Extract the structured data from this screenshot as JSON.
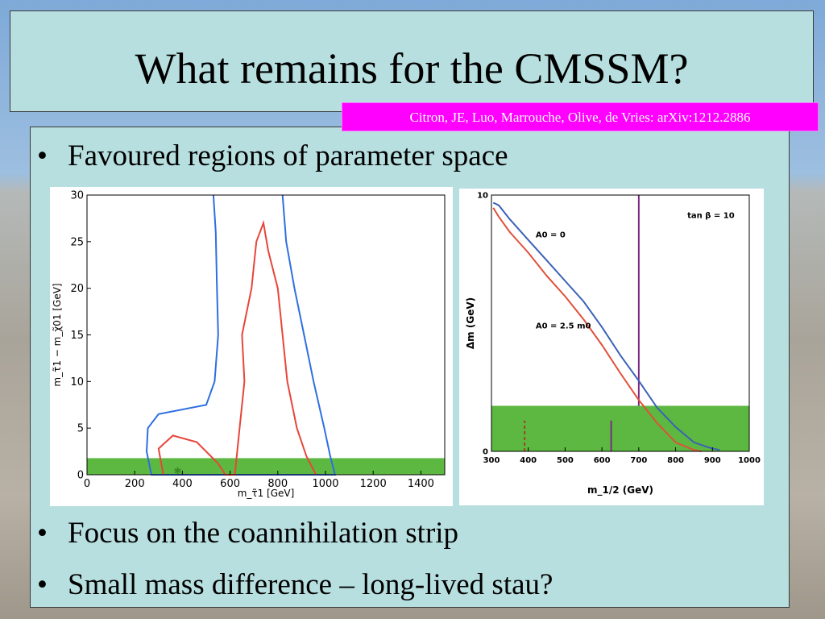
{
  "slide": {
    "title": "What remains for the CMSSM?",
    "citation": "Citron, JE, Luo, Marrouche, Olive, de Vries: arXiv:1212.2886",
    "bullets": [
      "Favoured regions of parameter space",
      "Focus on the coannihilation strip",
      "Small mass difference – long-lived stau?"
    ],
    "bullet_glyph": "•"
  },
  "colors": {
    "panel": "#b8dfe0",
    "citation_bg": "#ff00ff",
    "blue_contour": "#2e6fe0",
    "red_contour": "#e8453a",
    "green_band": "#5cb840",
    "purple_line": "#7a2c82"
  },
  "chart_data": [
    {
      "type": "line",
      "xlabel": "m_τ̃1 [GeV]",
      "ylabel": "m_τ̃1 − m_χ̃01 [GeV]",
      "xlim": [
        0,
        1500
      ],
      "ylim": [
        0,
        30
      ],
      "x_ticks": [
        "0",
        "200",
        "400",
        "600",
        "800",
        "1000",
        "1200",
        "1400"
      ],
      "y_ticks": [
        "0",
        "5",
        "10",
        "15",
        "20",
        "25",
        "30"
      ],
      "grid": false,
      "bands": [
        {
          "y": [
            0,
            1.777
          ],
          "color": "#5cb840"
        }
      ],
      "markers": [
        {
          "x": 380,
          "y": 0.4,
          "color": "#3a8a2a",
          "shape": "star"
        }
      ],
      "series": [
        {
          "color": "#2e6fe0",
          "points": [
            [
              530,
              30
            ],
            [
              540,
              26
            ],
            [
              545,
              20
            ],
            [
              550,
              15
            ],
            [
              535,
              10
            ],
            [
              500,
              7.5
            ],
            [
              300,
              6.5
            ],
            [
              255,
              5
            ],
            [
              250,
              2.5
            ],
            [
              270,
              0
            ],
            [
              1040,
              0
            ],
            [
              1020,
              2
            ],
            [
              995,
              5
            ],
            [
              950,
              10
            ],
            [
              910,
              15
            ],
            [
              870,
              20
            ],
            [
              835,
              25
            ],
            [
              820,
              30
            ]
          ]
        },
        {
          "color": "#e8453a",
          "points": [
            [
              320,
              0
            ],
            [
              300,
              2.8
            ],
            [
              360,
              4.2
            ],
            [
              460,
              3.5
            ],
            [
              550,
              1.2
            ],
            [
              580,
              0
            ],
            [
              620,
              0
            ],
            [
              640,
              5
            ],
            [
              660,
              10
            ],
            [
              650,
              15
            ],
            [
              690,
              20
            ],
            [
              710,
              25
            ],
            [
              740,
              27
            ],
            [
              760,
              24
            ],
            [
              800,
              20
            ],
            [
              820,
              15
            ],
            [
              840,
              10
            ],
            [
              880,
              5
            ],
            [
              920,
              2
            ],
            [
              960,
              0
            ]
          ]
        }
      ]
    },
    {
      "type": "line",
      "xlabel": "m_1/2 (GeV)",
      "ylabel": "Δm (GeV)",
      "xlim": [
        300,
        1000
      ],
      "ylim": [
        0,
        10
      ],
      "x_ticks": [
        "300",
        "400",
        "500",
        "600",
        "700",
        "800",
        "900",
        "1000"
      ],
      "y_ticks": [
        "0",
        "10"
      ],
      "grid": false,
      "annotations": [
        "tan β = 10",
        "A0 = 0",
        "A0 = 2.5 m0"
      ],
      "bands": [
        {
          "y": [
            0,
            1.777
          ],
          "color": "#5cb840"
        }
      ],
      "vlines": [
        {
          "x": 700,
          "y": [
            1.777,
            10
          ],
          "color": "#7a2c82",
          "style": "solid"
        },
        {
          "x": 625,
          "y": [
            0,
            1.2
          ],
          "color": "#7a2c82",
          "style": "solid"
        },
        {
          "x": 390,
          "y": [
            0,
            1.2
          ],
          "color": "#a0402a",
          "style": "dashed"
        }
      ],
      "series": [
        {
          "name": "A0 = 0",
          "color": "#3a62b5",
          "points": [
            [
              305,
              9.7
            ],
            [
              320,
              9.6
            ],
            [
              350,
              9.05
            ],
            [
              400,
              8.25
            ],
            [
              450,
              7.45
            ],
            [
              500,
              6.65
            ],
            [
              550,
              5.85
            ],
            [
              600,
              4.85
            ],
            [
              650,
              3.75
            ],
            [
              700,
              2.75
            ],
            [
              750,
              1.7
            ],
            [
              800,
              0.95
            ],
            [
              850,
              0.35
            ],
            [
              890,
              0.15
            ],
            [
              920,
              0.05
            ]
          ]
        },
        {
          "name": "A0 = 2.5 m0",
          "color": "#e0503a",
          "points": [
            [
              305,
              9.5
            ],
            [
              320,
              9.15
            ],
            [
              350,
              8.55
            ],
            [
              400,
              7.75
            ],
            [
              450,
              6.85
            ],
            [
              500,
              6.05
            ],
            [
              550,
              5.15
            ],
            [
              600,
              4.15
            ],
            [
              650,
              3.05
            ],
            [
              700,
              2.0
            ],
            [
              750,
              1.1
            ],
            [
              800,
              0.35
            ],
            [
              850,
              0.05
            ],
            [
              870,
              0.0
            ]
          ]
        }
      ]
    }
  ]
}
